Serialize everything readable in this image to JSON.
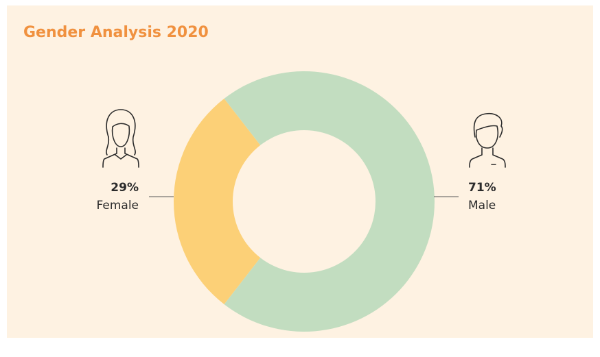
{
  "chart_data": {
    "type": "donut",
    "title": "Gender Analysis 2020",
    "categories": [
      "Female",
      "Male"
    ],
    "values": [
      29,
      71
    ],
    "value_labels": [
      "29%",
      "71%"
    ],
    "colors": [
      "#fcd077",
      "#c2ddc0"
    ]
  }
}
